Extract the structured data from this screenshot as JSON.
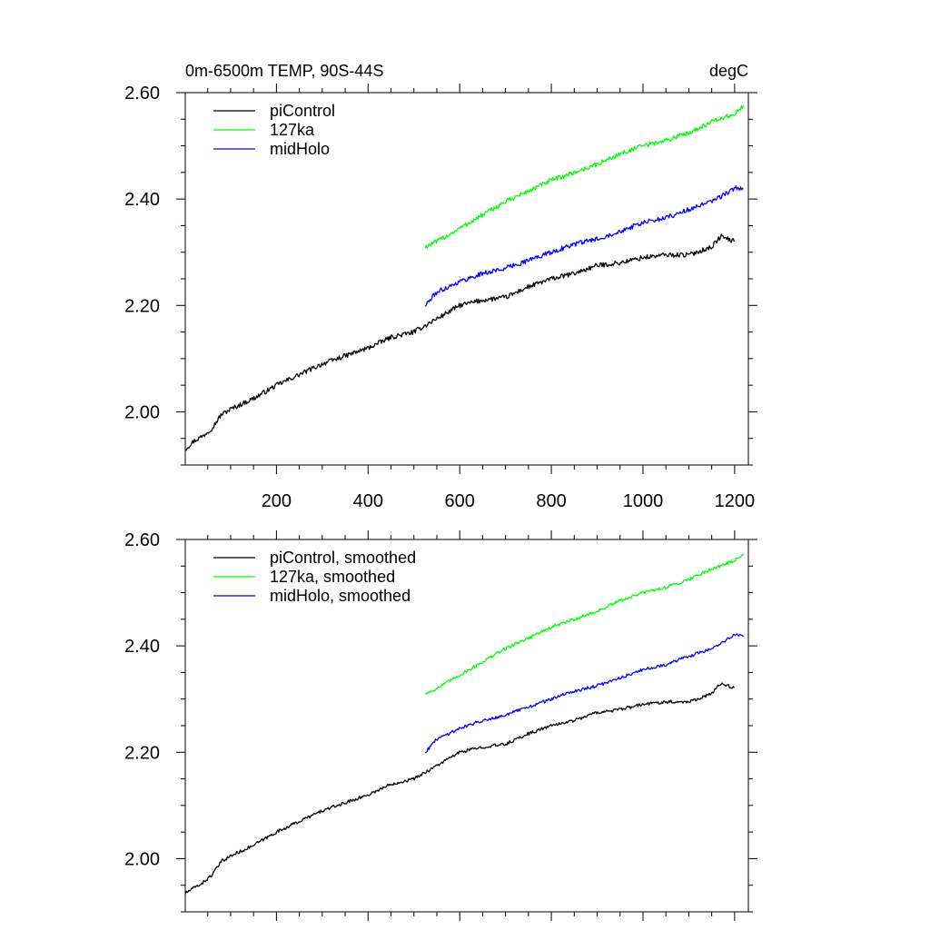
{
  "figure": {
    "title_left": "0m-6500m TEMP, 90S-44S",
    "title_right": "degC"
  },
  "chart_data": [
    {
      "type": "line",
      "panel": "top",
      "xlim": [
        1,
        1230
      ],
      "ylim": [
        1.9,
        2.6
      ],
      "x_ticks": [
        200,
        400,
        600,
        800,
        1000,
        1200
      ],
      "x_tick_labels": [
        "200",
        "400",
        "600",
        "800",
        "1000",
        "1200"
      ],
      "y_ticks": [
        2.0,
        2.2,
        2.4,
        2.6
      ],
      "y_tick_labels": [
        "2.00",
        "2.20",
        "2.40",
        "2.60"
      ],
      "grid": false,
      "legend_position": "top-left",
      "series": [
        {
          "name": "piControl",
          "color": "#000000",
          "x": [
            1,
            20,
            40,
            60,
            80,
            100,
            150,
            200,
            250,
            300,
            350,
            400,
            450,
            500,
            520,
            550,
            580,
            600,
            650,
            700,
            750,
            800,
            850,
            900,
            950,
            1000,
            1050,
            1100,
            1150,
            1170,
            1200
          ],
          "y": [
            1.93,
            1.945,
            1.955,
            1.97,
            1.995,
            2.005,
            2.025,
            2.05,
            2.07,
            2.09,
            2.105,
            2.12,
            2.14,
            2.15,
            2.16,
            2.175,
            2.19,
            2.2,
            2.21,
            2.215,
            2.235,
            2.25,
            2.26,
            2.275,
            2.28,
            2.29,
            2.295,
            2.295,
            2.31,
            2.33,
            2.32
          ]
        },
        {
          "name": "127ka",
          "color": "#00ff00",
          "x": [
            525,
            550,
            600,
            650,
            700,
            750,
            800,
            850,
            900,
            950,
            1000,
            1050,
            1100,
            1150,
            1200,
            1220
          ],
          "y": [
            2.31,
            2.32,
            2.345,
            2.37,
            2.395,
            2.415,
            2.435,
            2.45,
            2.465,
            2.485,
            2.5,
            2.51,
            2.525,
            2.545,
            2.56,
            2.575
          ]
        },
        {
          "name": "midHolo",
          "color": "#0000ff",
          "x": [
            525,
            550,
            600,
            650,
            700,
            750,
            800,
            850,
            900,
            950,
            1000,
            1050,
            1100,
            1150,
            1200,
            1220
          ],
          "y": [
            2.2,
            2.225,
            2.245,
            2.26,
            2.27,
            2.285,
            2.3,
            2.315,
            2.325,
            2.34,
            2.355,
            2.365,
            2.38,
            2.395,
            2.42,
            2.42
          ]
        }
      ]
    },
    {
      "type": "line",
      "panel": "bottom",
      "xlim": [
        1,
        1230
      ],
      "ylim": [
        1.9,
        2.6
      ],
      "x_ticks": [
        200,
        400,
        600,
        800,
        1000,
        1200
      ],
      "x_tick_labels": [],
      "y_ticks": [
        2.0,
        2.2,
        2.4,
        2.6
      ],
      "y_tick_labels": [
        "2.00",
        "2.20",
        "2.40",
        "2.60"
      ],
      "grid": false,
      "legend_position": "top-left",
      "series": [
        {
          "name": "piControl, smoothed",
          "color": "#000000",
          "x": [
            1,
            20,
            40,
            60,
            80,
            100,
            150,
            200,
            250,
            300,
            350,
            400,
            450,
            500,
            520,
            550,
            580,
            600,
            650,
            700,
            750,
            800,
            850,
            900,
            950,
            1000,
            1050,
            1100,
            1150,
            1170,
            1200
          ],
          "y": [
            1.935,
            1.945,
            1.955,
            1.97,
            1.995,
            2.005,
            2.025,
            2.05,
            2.07,
            2.09,
            2.105,
            2.12,
            2.14,
            2.15,
            2.16,
            2.175,
            2.19,
            2.2,
            2.21,
            2.215,
            2.235,
            2.25,
            2.26,
            2.275,
            2.28,
            2.29,
            2.295,
            2.295,
            2.31,
            2.33,
            2.32
          ]
        },
        {
          "name": "127ka, smoothed",
          "color": "#00ff00",
          "x": [
            525,
            550,
            600,
            650,
            700,
            750,
            800,
            850,
            900,
            950,
            1000,
            1050,
            1100,
            1150,
            1200,
            1220
          ],
          "y": [
            2.31,
            2.32,
            2.345,
            2.37,
            2.395,
            2.415,
            2.435,
            2.45,
            2.465,
            2.485,
            2.5,
            2.51,
            2.525,
            2.545,
            2.56,
            2.575
          ]
        },
        {
          "name": "midHolo, smoothed",
          "color": "#0000ff",
          "x": [
            525,
            550,
            600,
            650,
            700,
            750,
            800,
            850,
            900,
            950,
            1000,
            1050,
            1100,
            1150,
            1200,
            1220
          ],
          "y": [
            2.2,
            2.225,
            2.245,
            2.26,
            2.27,
            2.285,
            2.3,
            2.315,
            2.325,
            2.34,
            2.355,
            2.365,
            2.38,
            2.395,
            2.42,
            2.42
          ]
        }
      ]
    }
  ]
}
